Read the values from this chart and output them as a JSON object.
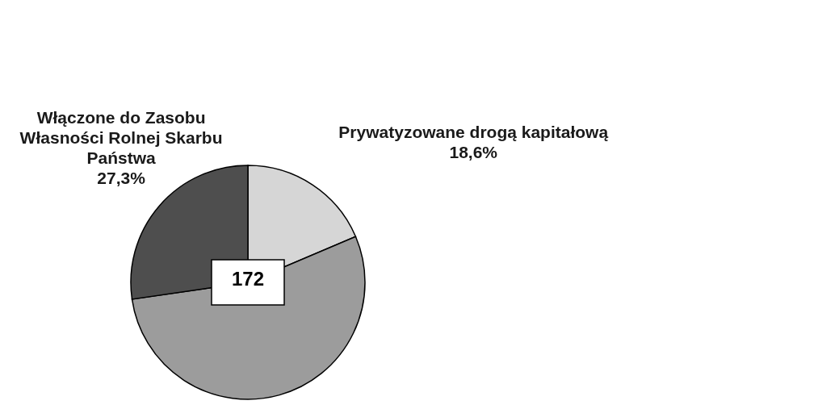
{
  "chart_data": {
    "type": "pie",
    "categories": [
      "Prywatyzowane drogą kapitałową",
      null,
      "Włączone do Zasobu Własności Rolnej Skarbu Państwa"
    ],
    "values": [
      18.6,
      54.1,
      27.3
    ],
    "colors": [
      "#d6d6d6",
      "#9c9c9c",
      "#4e4e4e"
    ],
    "value_labels": [
      "18,6%",
      null,
      "27,3%"
    ],
    "annotations": [
      "172"
    ]
  }
}
